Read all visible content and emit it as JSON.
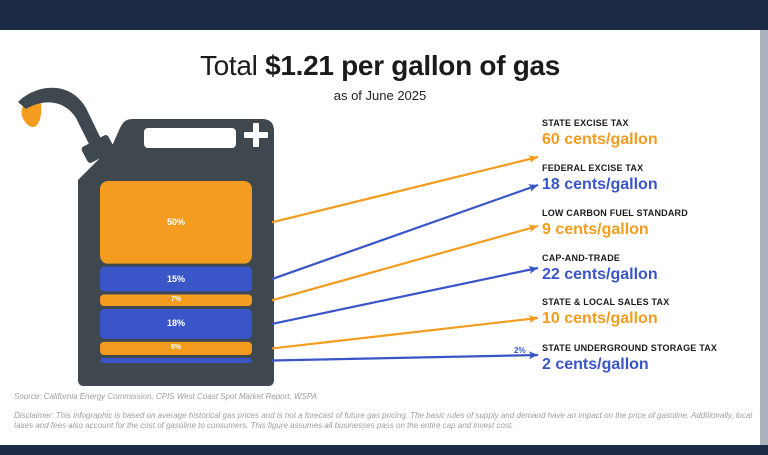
{
  "title_prefix": "Total",
  "title_bold": "$1.21 per gallon of gas",
  "subtitle": "as of June 2025",
  "colors": {
    "orange": "#f39c1f",
    "blue": "#3a55c7",
    "can": "#3f474f",
    "dark_band": "#1c2b45"
  },
  "chart_data": {
    "type": "bar",
    "title": "Total $1.21 per gallon of gas",
    "subtitle": "as of June 2025",
    "unit": "cents/gallon",
    "categories": [
      "STATE EXCISE TAX",
      "FEDERAL EXCISE TAX",
      "LOW CARBON FUEL STANDARD",
      "CAP-AND-TRADE",
      "STATE & LOCAL SALES TAX",
      "STATE UNDERGROUND STORAGE TAX"
    ],
    "values": [
      60,
      18,
      9,
      22,
      10,
      2
    ],
    "segments": [
      {
        "name": "STATE EXCISE TAX",
        "percent": 50,
        "percent_label": "50%",
        "value_label": "60 cents/gallon",
        "color": "orange"
      },
      {
        "name": "FEDERAL EXCISE TAX",
        "percent": 15,
        "percent_label": "15%",
        "value_label": "18 cents/gallon",
        "color": "blue"
      },
      {
        "name": "LOW CARBON FUEL STANDARD",
        "percent": 7,
        "percent_label": "7%",
        "value_label": "9 cents/gallon",
        "color": "orange"
      },
      {
        "name": "CAP-AND-TRADE",
        "percent": 18,
        "percent_label": "18%",
        "value_label": "22 cents/gallon",
        "color": "blue"
      },
      {
        "name": "STATE & LOCAL SALES TAX",
        "percent": 8,
        "percent_label": "8%",
        "value_label": "10 cents/gallon",
        "color": "orange"
      },
      {
        "name": "STATE UNDERGROUND STORAGE TAX",
        "percent": 2,
        "percent_label": "2%",
        "value_label": "2 cents/gallon",
        "color": "blue"
      }
    ]
  },
  "source": "Source: California Energy Commission, CPIS West Coast Spot Market Report, WSPA",
  "disclaimer": "Disclaimer: This infographic is based on average historical gas prices and is not a forecast of future gas pricing. The basic rules of supply and demand have an impact on the price of gasoline. Additionally, local taxes and fees also account for the cost of gasoline to consumers. This figure assumes all businesses pass on the entire cap and invest cost."
}
